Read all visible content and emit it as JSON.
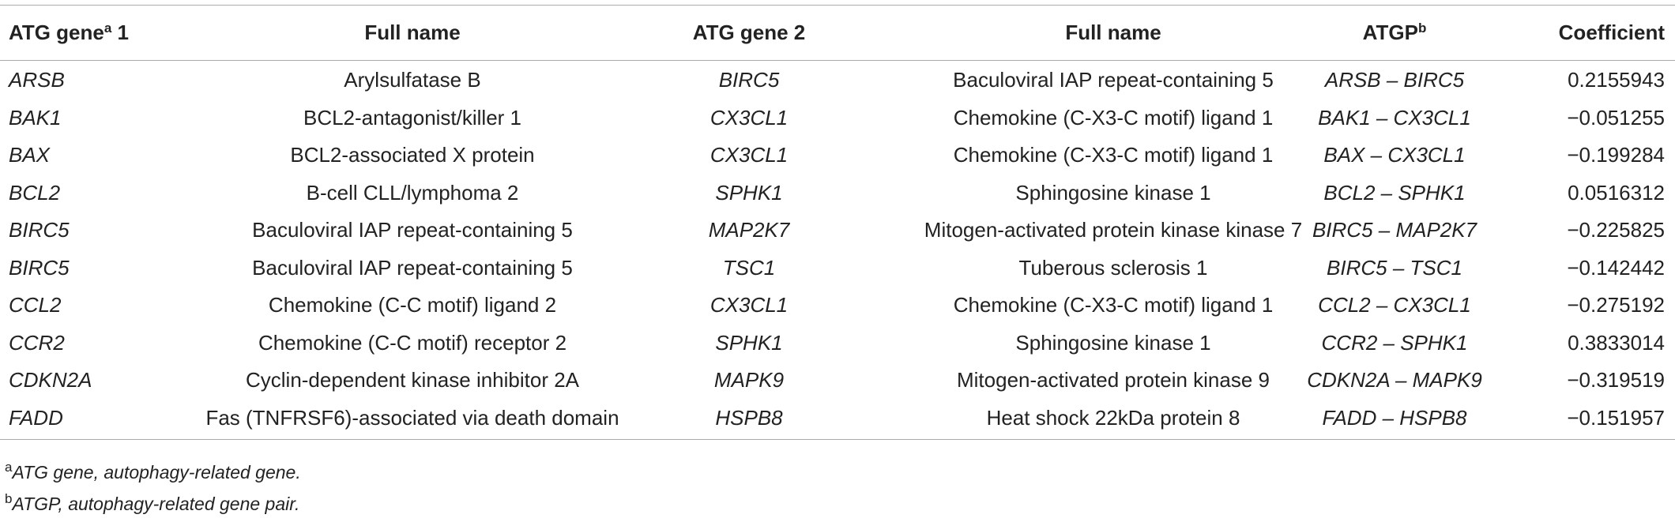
{
  "table": {
    "header": [
      {
        "text": "ATG gene",
        "sup": "a",
        "after": " 1"
      },
      {
        "text": "Full name"
      },
      {
        "text": "ATG gene 2"
      },
      {
        "text": "Full name"
      },
      {
        "text": "ATGP",
        "sup": "b"
      },
      {
        "text": "Coefficient"
      }
    ],
    "rows": [
      [
        "ARSB",
        "Arylsulfatase B",
        "BIRC5",
        "Baculoviral IAP repeat-containing 5",
        "ARSB – BIRC5",
        "0.2155943"
      ],
      [
        "BAK1",
        "BCL2-antagonist/killer 1",
        "CX3CL1",
        "Chemokine (C-X3-C motif) ligand 1",
        "BAK1 – CX3CL1",
        "−0.051255"
      ],
      [
        "BAX",
        "BCL2-associated X protein",
        "CX3CL1",
        "Chemokine (C-X3-C motif) ligand 1",
        "BAX – CX3CL1",
        "−0.199284"
      ],
      [
        "BCL2",
        "B-cell CLL/lymphoma 2",
        "SPHK1",
        "Sphingosine kinase 1",
        "BCL2 – SPHK1",
        "0.0516312"
      ],
      [
        "BIRC5",
        "Baculoviral IAP repeat-containing 5",
        "MAP2K7",
        "Mitogen-activated protein kinase kinase 7",
        "BIRC5 – MAP2K7",
        "−0.225825"
      ],
      [
        "BIRC5",
        "Baculoviral IAP repeat-containing 5",
        "TSC1",
        "Tuberous sclerosis 1",
        "BIRC5 – TSC1",
        "−0.142442"
      ],
      [
        "CCL2",
        "Chemokine (C-C motif) ligand 2",
        "CX3CL1",
        "Chemokine (C-X3-C motif) ligand 1",
        "CCL2 – CX3CL1",
        "−0.275192"
      ],
      [
        "CCR2",
        "Chemokine (C-C motif) receptor 2",
        "SPHK1",
        "Sphingosine kinase 1",
        "CCR2 – SPHK1",
        "0.3833014"
      ],
      [
        "CDKN2A",
        "Cyclin-dependent kinase inhibitor 2A",
        "MAPK9",
        "Mitogen-activated protein kinase 9",
        "CDKN2A – MAPK9",
        "−0.319519"
      ],
      [
        "FADD",
        "Fas (TNFRSF6)-associated via death domain",
        "HSPB8",
        "Heat shock 22kDa protein 8",
        "FADD – HSPB8",
        "−0.151957"
      ]
    ],
    "footnotes": [
      {
        "mark": "a",
        "text": "ATG gene, autophagy-related gene."
      },
      {
        "mark": "b",
        "text": "ATGP, autophagy-related gene pair."
      }
    ]
  }
}
